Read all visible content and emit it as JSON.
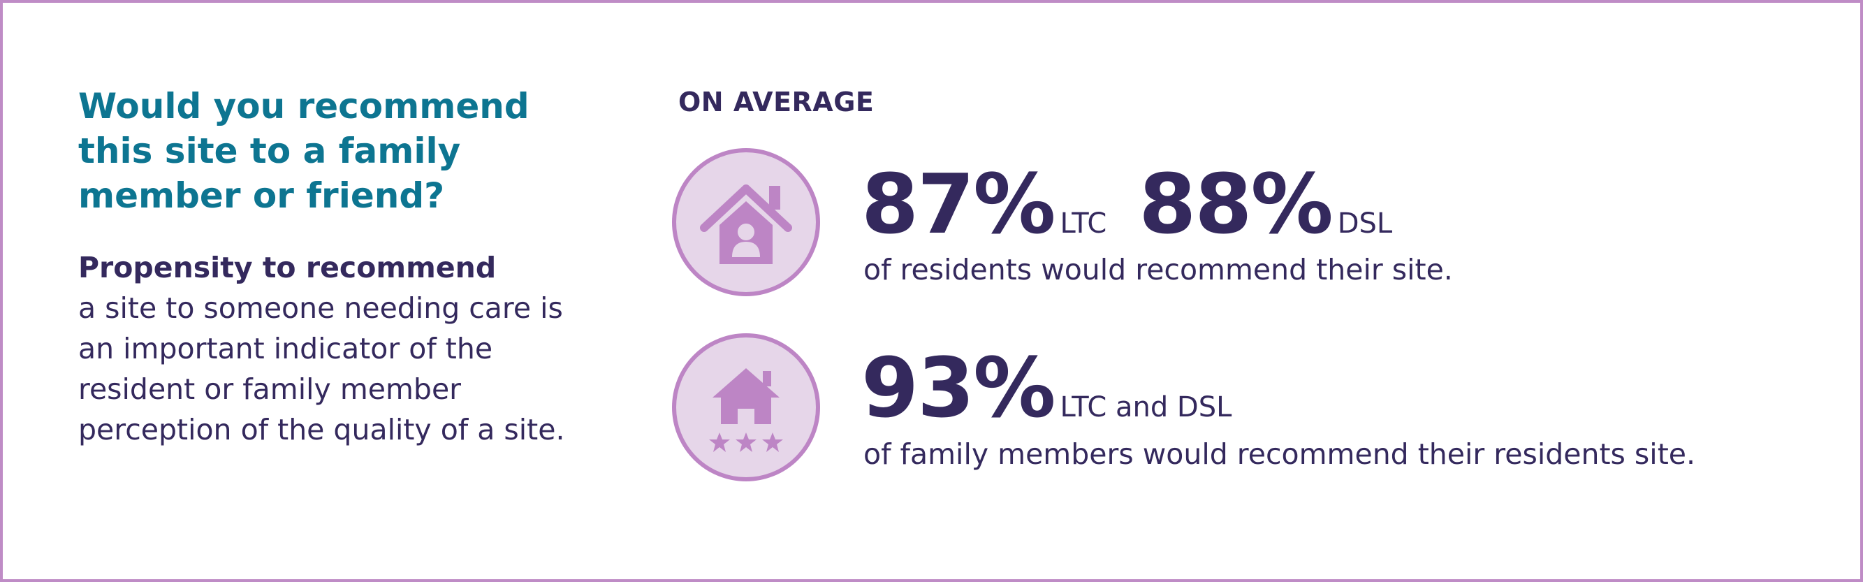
{
  "left": {
    "heading": "Would you recommend this site to a family member or friend?",
    "lead": "Propensity to recommend",
    "body": "a site to someone needing care is an important indicator of the resident or family member perception of the quality of a site."
  },
  "on_average_label": "ON AVERAGE",
  "stats": [
    {
      "icon": "house-person-icon",
      "values": [
        {
          "value": "87%",
          "unit": "LTC"
        },
        {
          "value": "88%",
          "unit": "DSL"
        }
      ],
      "caption": "of residents would recommend their site."
    },
    {
      "icon": "house-stars-icon",
      "values": [
        {
          "value": "93%",
          "unit": "LTC and DSL"
        }
      ],
      "caption": "of family members would recommend their residents site."
    }
  ],
  "colors": {
    "border": "#bf8cc6",
    "heading": "#0d7591",
    "text": "#34295d",
    "icon_fill": "#bd85c5",
    "icon_bg": "#e6d6e9"
  }
}
